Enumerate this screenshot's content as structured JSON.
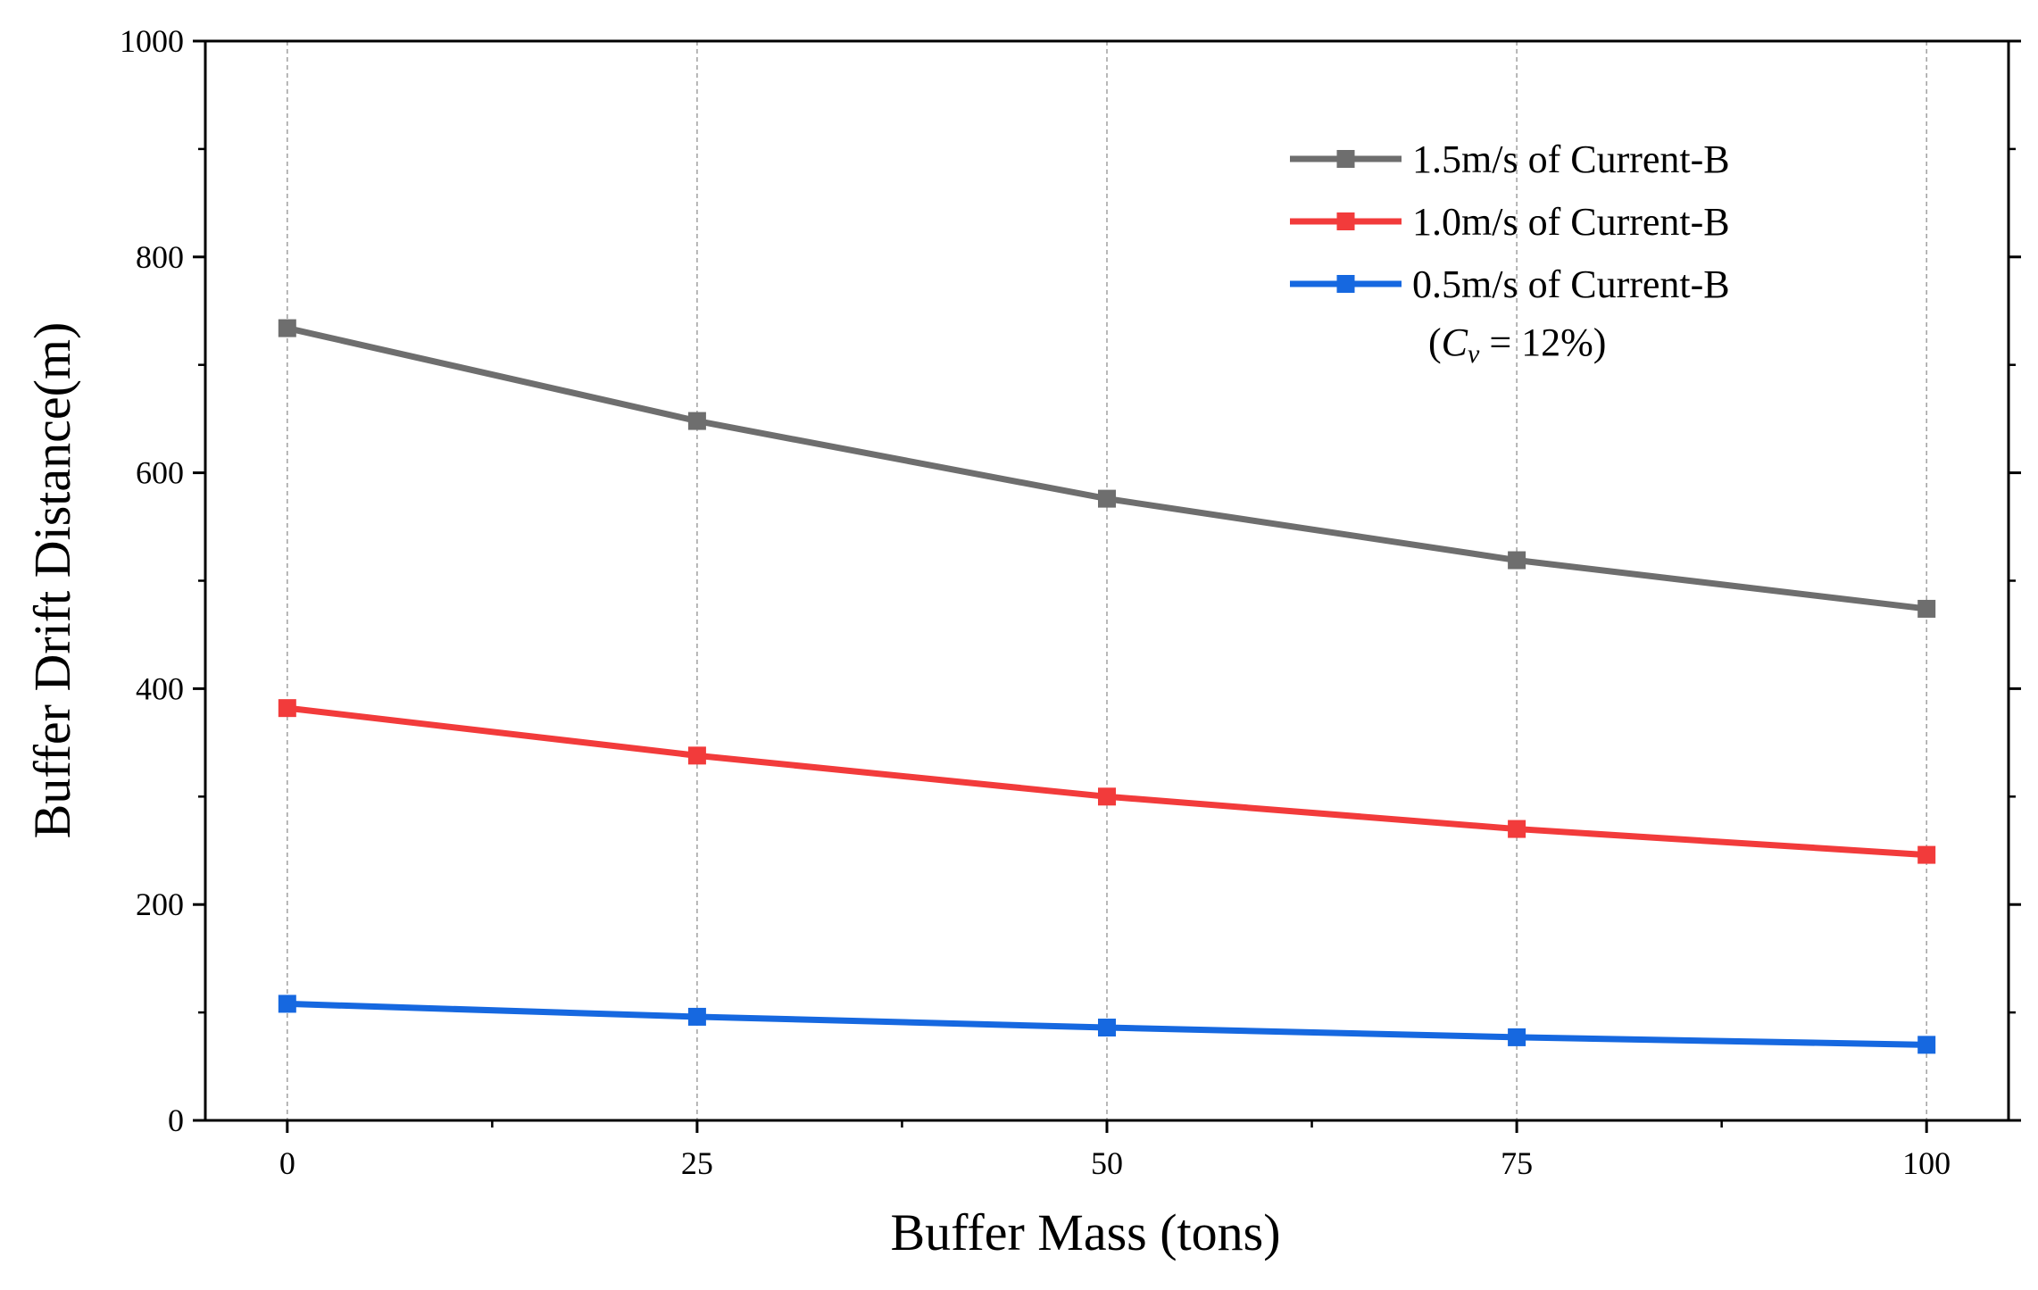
{
  "chart_data": {
    "type": "line",
    "title": "",
    "xlabel": "Buffer Mass (tons)",
    "ylabel": "Buffer Drift Distance(m)",
    "x": [
      0,
      25,
      50,
      75,
      100
    ],
    "xlim": [
      -5,
      105
    ],
    "ylim": [
      0,
      1000
    ],
    "x_ticks": [
      "0",
      "25",
      "50",
      "75",
      "100"
    ],
    "y_ticks": [
      "0",
      "200",
      "400",
      "600",
      "800",
      "1000"
    ],
    "grid": "vertical dashed at x ticks",
    "legend_position": "top-right",
    "legend_note": {
      "prefix": "(",
      "variable": "C",
      "subscript": "v",
      "suffix": " = 12%)"
    },
    "series": [
      {
        "name": "1.5m/s of Current-B",
        "color": "#6e6e6e",
        "values": [
          734,
          648,
          576,
          519,
          474
        ]
      },
      {
        "name": "1.0m/s of Current-B",
        "color": "#f23b3b",
        "values": [
          382,
          338,
          300,
          270,
          246
        ]
      },
      {
        "name": "0.5m/s of Current-B",
        "color": "#1668e0",
        "values": [
          108,
          96,
          86,
          77,
          70
        ]
      }
    ]
  }
}
